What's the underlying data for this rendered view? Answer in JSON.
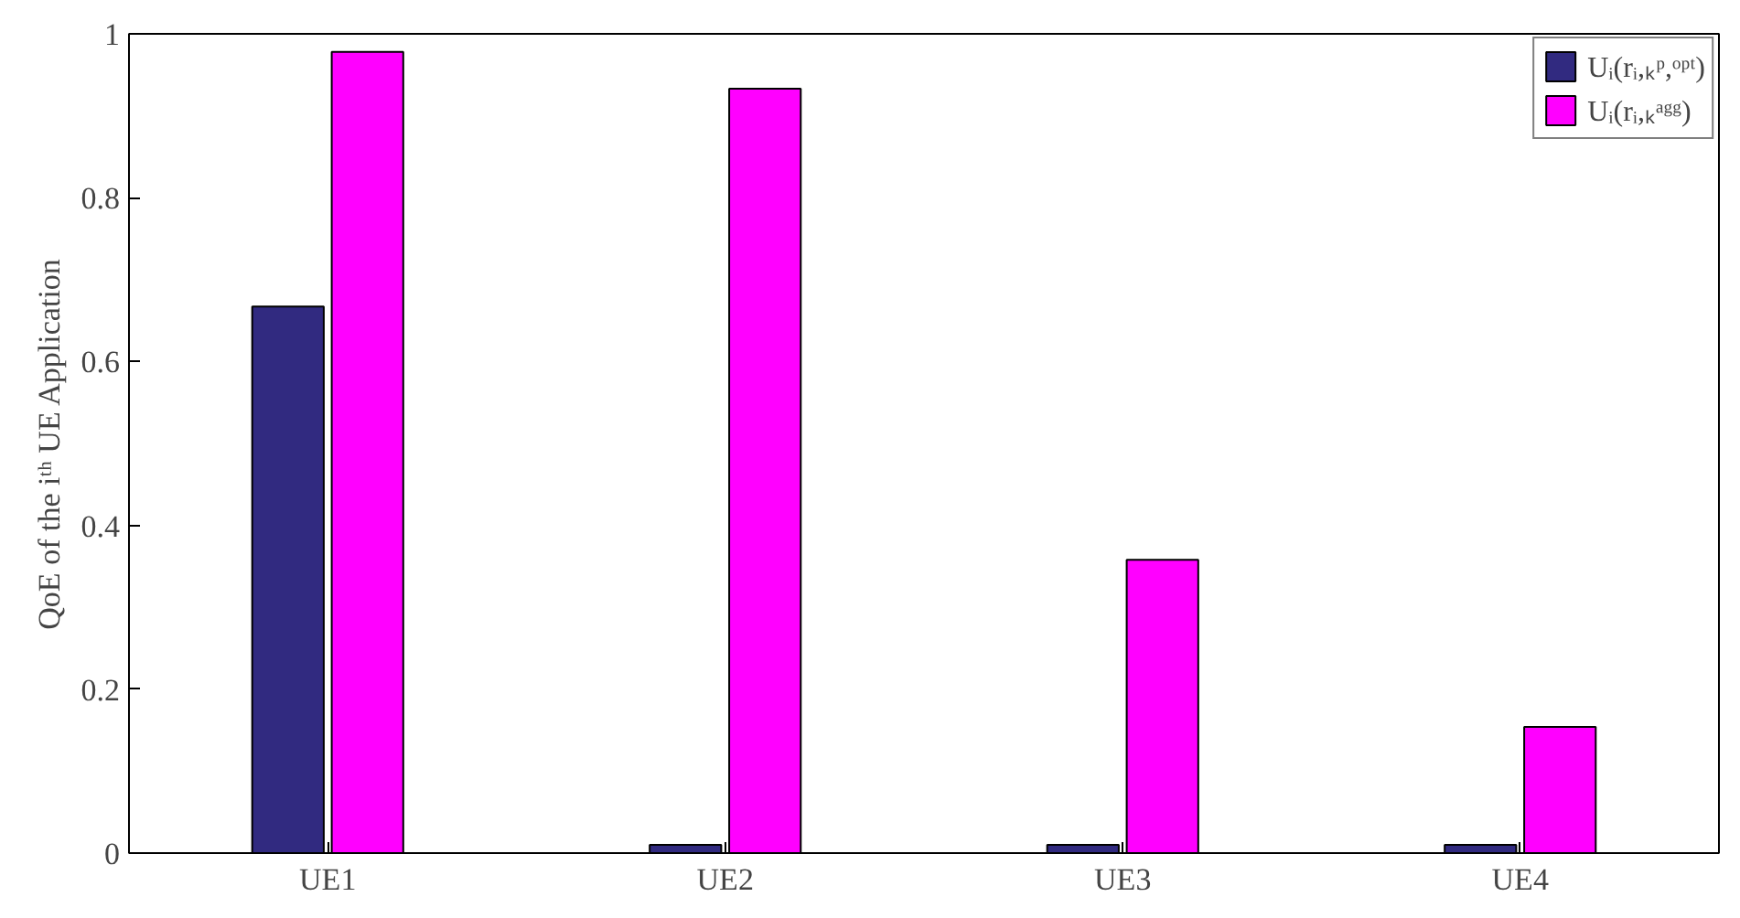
{
  "chart_data": {
    "type": "bar",
    "ylabel": "QoE of the iᵗʰ UE Application",
    "categories": [
      "UE1",
      "UE2",
      "UE3",
      "UE4"
    ],
    "series": [
      {
        "name": "Uᵢ(rᵢ,ₖᵖ,ᵒᵖᵗ)",
        "color": "#312a80",
        "values": [
          0.667,
          0.01,
          0.01,
          0.01
        ]
      },
      {
        "name": "Uᵢ(rᵢ,ₖᵃᵍᵍ)",
        "color": "#ff00ff",
        "values": [
          0.978,
          0.933,
          0.358,
          0.154
        ]
      }
    ],
    "ylim": [
      0,
      1
    ],
    "yticks": [
      0,
      0.2,
      0.4,
      0.6,
      0.8,
      1
    ],
    "grid": false,
    "legend": "top right"
  }
}
